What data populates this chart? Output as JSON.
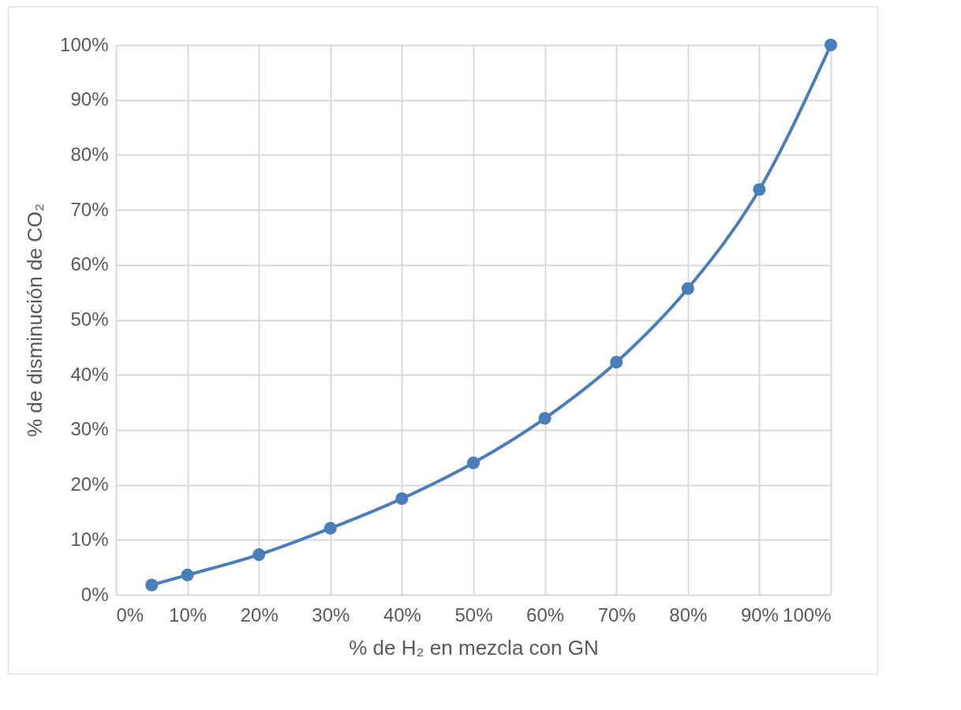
{
  "chart_data": {
    "type": "line",
    "xlabel": "% de H₂ en mezcla con GN",
    "ylabel": "% de disminución de CO₂",
    "x": [
      5,
      10,
      20,
      30,
      40,
      50,
      60,
      70,
      80,
      90,
      100
    ],
    "series": [
      {
        "color": "#4a7ebb",
        "values": [
          1.8,
          3.6,
          7.3,
          12.1,
          17.5,
          24.0,
          32.1,
          42.3,
          55.7,
          73.7,
          100
        ]
      }
    ],
    "xlim": [
      0,
      100
    ],
    "ylim": [
      0,
      100
    ],
    "xticks": [
      {
        "value": 0,
        "label": "0%"
      },
      {
        "value": 10,
        "label": "10%"
      },
      {
        "value": 20,
        "label": "20%"
      },
      {
        "value": 30,
        "label": "30%"
      },
      {
        "value": 40,
        "label": "40%"
      },
      {
        "value": 50,
        "label": "50%"
      },
      {
        "value": 60,
        "label": "60%"
      },
      {
        "value": 70,
        "label": "70%"
      },
      {
        "value": 80,
        "label": "80%"
      },
      {
        "value": 90,
        "label": "90%"
      },
      {
        "value": 100,
        "label": "100%"
      }
    ],
    "yticks": [
      {
        "value": 0,
        "label": "0%"
      },
      {
        "value": 10,
        "label": "10%"
      },
      {
        "value": 20,
        "label": "20%"
      },
      {
        "value": 30,
        "label": "30%"
      },
      {
        "value": 40,
        "label": "40%"
      },
      {
        "value": 50,
        "label": "50%"
      },
      {
        "value": 60,
        "label": "60%"
      },
      {
        "value": 70,
        "label": "70%"
      },
      {
        "value": 80,
        "label": "80%"
      },
      {
        "value": 90,
        "label": "90%"
      },
      {
        "value": 100,
        "label": "100%"
      }
    ],
    "grid": true,
    "marker": "circle",
    "line_style": "solid"
  }
}
